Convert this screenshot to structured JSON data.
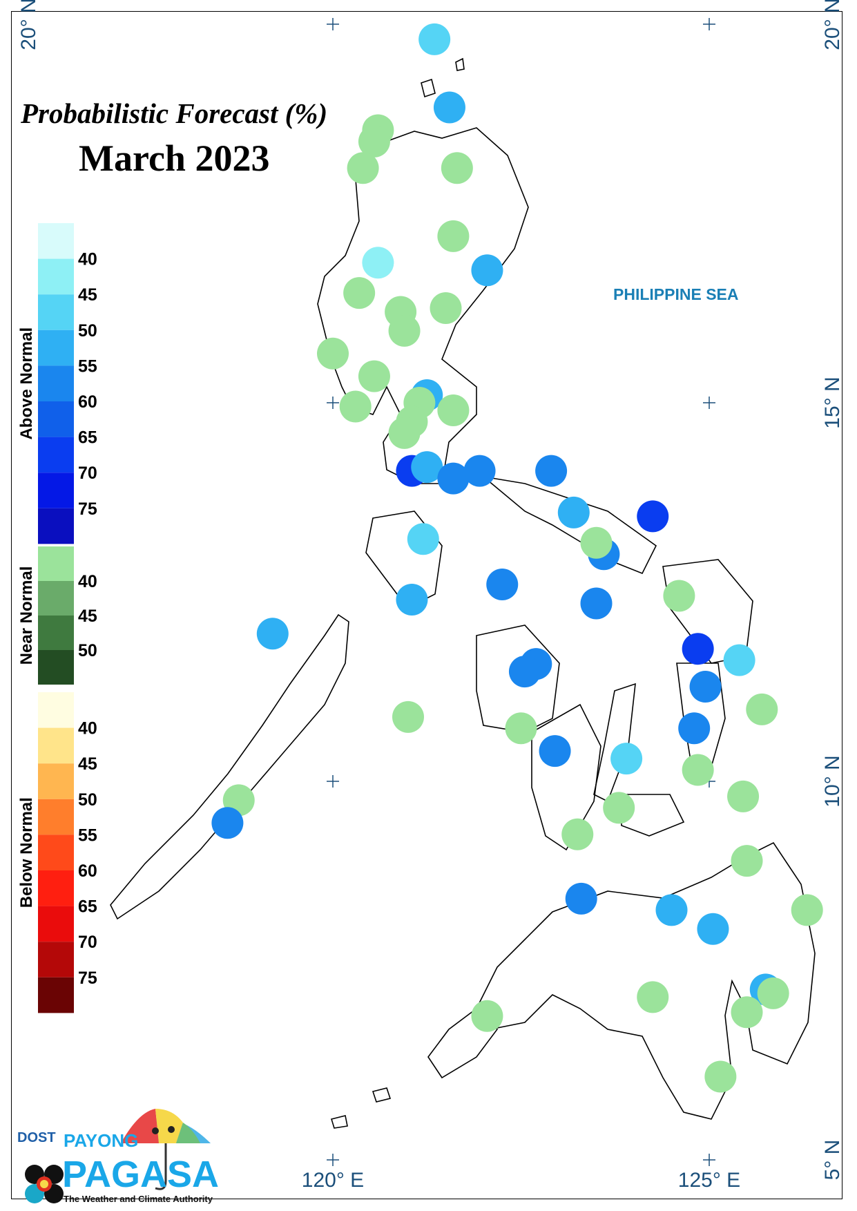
{
  "title": "Probabilistic Forecast (%)",
  "subtitle": "March 2023",
  "sea_label": "PHILIPPINE SEA",
  "axes": {
    "lat_labels": [
      "20° N",
      "15° N",
      "10° N",
      "5° N"
    ],
    "lon_labels": [
      "120° E",
      "125° E"
    ],
    "lon_range": [
      115.0,
      127.5
    ],
    "lat_range": [
      4.5,
      20.5
    ]
  },
  "legend": {
    "above_normal": {
      "title": "Above Normal",
      "labels": [
        "40",
        "45",
        "50",
        "55",
        "60",
        "65",
        "70",
        "75"
      ],
      "colors": [
        "#d8fbfb",
        "#8ef0f5",
        "#55d4f5",
        "#2fb0f3",
        "#1a86ee",
        "#1060ea",
        "#0a3df0",
        "#0418e6",
        "#0a0fbf"
      ]
    },
    "near_normal": {
      "title": "Near Normal",
      "labels": [
        "40",
        "45",
        "50"
      ],
      "colors": [
        "#9be39b",
        "#6aab6a",
        "#3f7a3f",
        "#234d23"
      ]
    },
    "below_normal": {
      "title": "Below Normal",
      "labels": [
        "40",
        "45",
        "50",
        "55",
        "60",
        "65",
        "70",
        "75"
      ],
      "colors": [
        "#fffde1",
        "#ffe48a",
        "#ffb650",
        "#ff7e2c",
        "#ff4a1a",
        "#ff1f10",
        "#ea0c0c",
        "#b40808",
        "#6a0404"
      ]
    }
  },
  "stations": [
    {
      "lon": 121.35,
      "lat": 19.8,
      "cat": "above",
      "color": "#55d4f5"
    },
    {
      "lon": 121.55,
      "lat": 18.9,
      "cat": "above",
      "color": "#2fb0f3"
    },
    {
      "lon": 120.6,
      "lat": 18.6,
      "cat": "near",
      "color": "#9be39b"
    },
    {
      "lon": 120.55,
      "lat": 18.45,
      "cat": "near",
      "color": "#9be39b"
    },
    {
      "lon": 120.4,
      "lat": 18.1,
      "cat": "near",
      "color": "#9be39b"
    },
    {
      "lon": 121.65,
      "lat": 18.1,
      "cat": "near",
      "color": "#9be39b"
    },
    {
      "lon": 121.6,
      "lat": 17.2,
      "cat": "near",
      "color": "#9be39b"
    },
    {
      "lon": 120.6,
      "lat": 16.85,
      "cat": "above",
      "color": "#8ef0f5"
    },
    {
      "lon": 122.05,
      "lat": 16.75,
      "cat": "above",
      "color": "#2fb0f3"
    },
    {
      "lon": 120.35,
      "lat": 16.45,
      "cat": "near",
      "color": "#9be39b"
    },
    {
      "lon": 120.9,
      "lat": 16.2,
      "cat": "near",
      "color": "#9be39b"
    },
    {
      "lon": 121.5,
      "lat": 16.25,
      "cat": "near",
      "color": "#9be39b"
    },
    {
      "lon": 120.95,
      "lat": 15.95,
      "cat": "near",
      "color": "#9be39b"
    },
    {
      "lon": 120.0,
      "lat": 15.65,
      "cat": "near",
      "color": "#9be39b"
    },
    {
      "lon": 120.55,
      "lat": 15.35,
      "cat": "near",
      "color": "#9be39b"
    },
    {
      "lon": 121.25,
      "lat": 15.1,
      "cat": "above",
      "color": "#2fb0f3"
    },
    {
      "lon": 121.15,
      "lat": 15.0,
      "cat": "near",
      "color": "#9be39b"
    },
    {
      "lon": 120.3,
      "lat": 14.95,
      "cat": "near",
      "color": "#9be39b"
    },
    {
      "lon": 121.6,
      "lat": 14.9,
      "cat": "near",
      "color": "#9be39b"
    },
    {
      "lon": 121.05,
      "lat": 14.75,
      "cat": "near",
      "color": "#9be39b"
    },
    {
      "lon": 120.95,
      "lat": 14.6,
      "cat": "near",
      "color": "#9be39b"
    },
    {
      "lon": 121.05,
      "lat": 14.1,
      "cat": "above",
      "color": "#0a3df0"
    },
    {
      "lon": 121.25,
      "lat": 14.15,
      "cat": "above",
      "color": "#2fb0f3"
    },
    {
      "lon": 121.6,
      "lat": 14.0,
      "cat": "above",
      "color": "#1a86ee"
    },
    {
      "lon": 121.95,
      "lat": 14.1,
      "cat": "above",
      "color": "#1a86ee"
    },
    {
      "lon": 122.9,
      "lat": 14.1,
      "cat": "above",
      "color": "#1a86ee"
    },
    {
      "lon": 124.25,
      "lat": 13.5,
      "cat": "above",
      "color": "#0a3df0"
    },
    {
      "lon": 121.2,
      "lat": 13.2,
      "cat": "above",
      "color": "#55d4f5"
    },
    {
      "lon": 123.2,
      "lat": 13.55,
      "cat": "above",
      "color": "#2fb0f3"
    },
    {
      "lon": 123.6,
      "lat": 13.0,
      "cat": "above",
      "color": "#1a86ee"
    },
    {
      "lon": 123.5,
      "lat": 13.15,
      "cat": "near",
      "color": "#9be39b"
    },
    {
      "lon": 122.25,
      "lat": 12.6,
      "cat": "above",
      "color": "#1a86ee"
    },
    {
      "lon": 124.6,
      "lat": 12.45,
      "cat": "near",
      "color": "#9be39b"
    },
    {
      "lon": 121.05,
      "lat": 12.4,
      "cat": "above",
      "color": "#2fb0f3"
    },
    {
      "lon": 123.5,
      "lat": 12.35,
      "cat": "above",
      "color": "#1a86ee"
    },
    {
      "lon": 119.2,
      "lat": 11.95,
      "cat": "above",
      "color": "#2fb0f3"
    },
    {
      "lon": 124.85,
      "lat": 11.75,
      "cat": "above",
      "color": "#0a3df0"
    },
    {
      "lon": 125.4,
      "lat": 11.6,
      "cat": "above",
      "color": "#55d4f5"
    },
    {
      "lon": 122.7,
      "lat": 11.55,
      "cat": "above",
      "color": "#1a86ee"
    },
    {
      "lon": 122.55,
      "lat": 11.45,
      "cat": "above",
      "color": "#1a86ee"
    },
    {
      "lon": 124.95,
      "lat": 11.25,
      "cat": "above",
      "color": "#1a86ee"
    },
    {
      "lon": 125.7,
      "lat": 10.95,
      "cat": "near",
      "color": "#9be39b"
    },
    {
      "lon": 121.0,
      "lat": 10.85,
      "cat": "near",
      "color": "#9be39b"
    },
    {
      "lon": 122.5,
      "lat": 10.7,
      "cat": "near",
      "color": "#9be39b"
    },
    {
      "lon": 124.8,
      "lat": 10.7,
      "cat": "above",
      "color": "#1a86ee"
    },
    {
      "lon": 122.95,
      "lat": 10.4,
      "cat": "above",
      "color": "#1a86ee"
    },
    {
      "lon": 123.9,
      "lat": 10.3,
      "cat": "above",
      "color": "#55d4f5"
    },
    {
      "lon": 124.85,
      "lat": 10.15,
      "cat": "near",
      "color": "#9be39b"
    },
    {
      "lon": 125.45,
      "lat": 9.8,
      "cat": "near",
      "color": "#9be39b"
    },
    {
      "lon": 118.75,
      "lat": 9.75,
      "cat": "near",
      "color": "#9be39b"
    },
    {
      "lon": 123.8,
      "lat": 9.65,
      "cat": "near",
      "color": "#9be39b"
    },
    {
      "lon": 118.6,
      "lat": 9.45,
      "cat": "above",
      "color": "#1a86ee"
    },
    {
      "lon": 123.25,
      "lat": 9.3,
      "cat": "near",
      "color": "#9be39b"
    },
    {
      "lon": 125.5,
      "lat": 8.95,
      "cat": "near",
      "color": "#9be39b"
    },
    {
      "lon": 123.3,
      "lat": 8.45,
      "cat": "above",
      "color": "#1a86ee"
    },
    {
      "lon": 124.5,
      "lat": 8.3,
      "cat": "above",
      "color": "#2fb0f3"
    },
    {
      "lon": 126.3,
      "lat": 8.3,
      "cat": "near",
      "color": "#9be39b"
    },
    {
      "lon": 125.05,
      "lat": 8.05,
      "cat": "above",
      "color": "#2fb0f3"
    },
    {
      "lon": 125.75,
      "lat": 7.25,
      "cat": "above",
      "color": "#2fb0f3"
    },
    {
      "lon": 124.25,
      "lat": 7.15,
      "cat": "near",
      "color": "#9be39b"
    },
    {
      "lon": 125.85,
      "lat": 7.2,
      "cat": "near",
      "color": "#9be39b"
    },
    {
      "lon": 125.5,
      "lat": 6.95,
      "cat": "near",
      "color": "#9be39b"
    },
    {
      "lon": 122.05,
      "lat": 6.9,
      "cat": "near",
      "color": "#9be39b"
    },
    {
      "lon": 125.15,
      "lat": 6.1,
      "cat": "near",
      "color": "#9be39b"
    }
  ],
  "logo": {
    "agency": "DOST",
    "line1": "PAYONG",
    "line2": "PAGASA",
    "tagline": "The Weather and Climate Authority"
  }
}
